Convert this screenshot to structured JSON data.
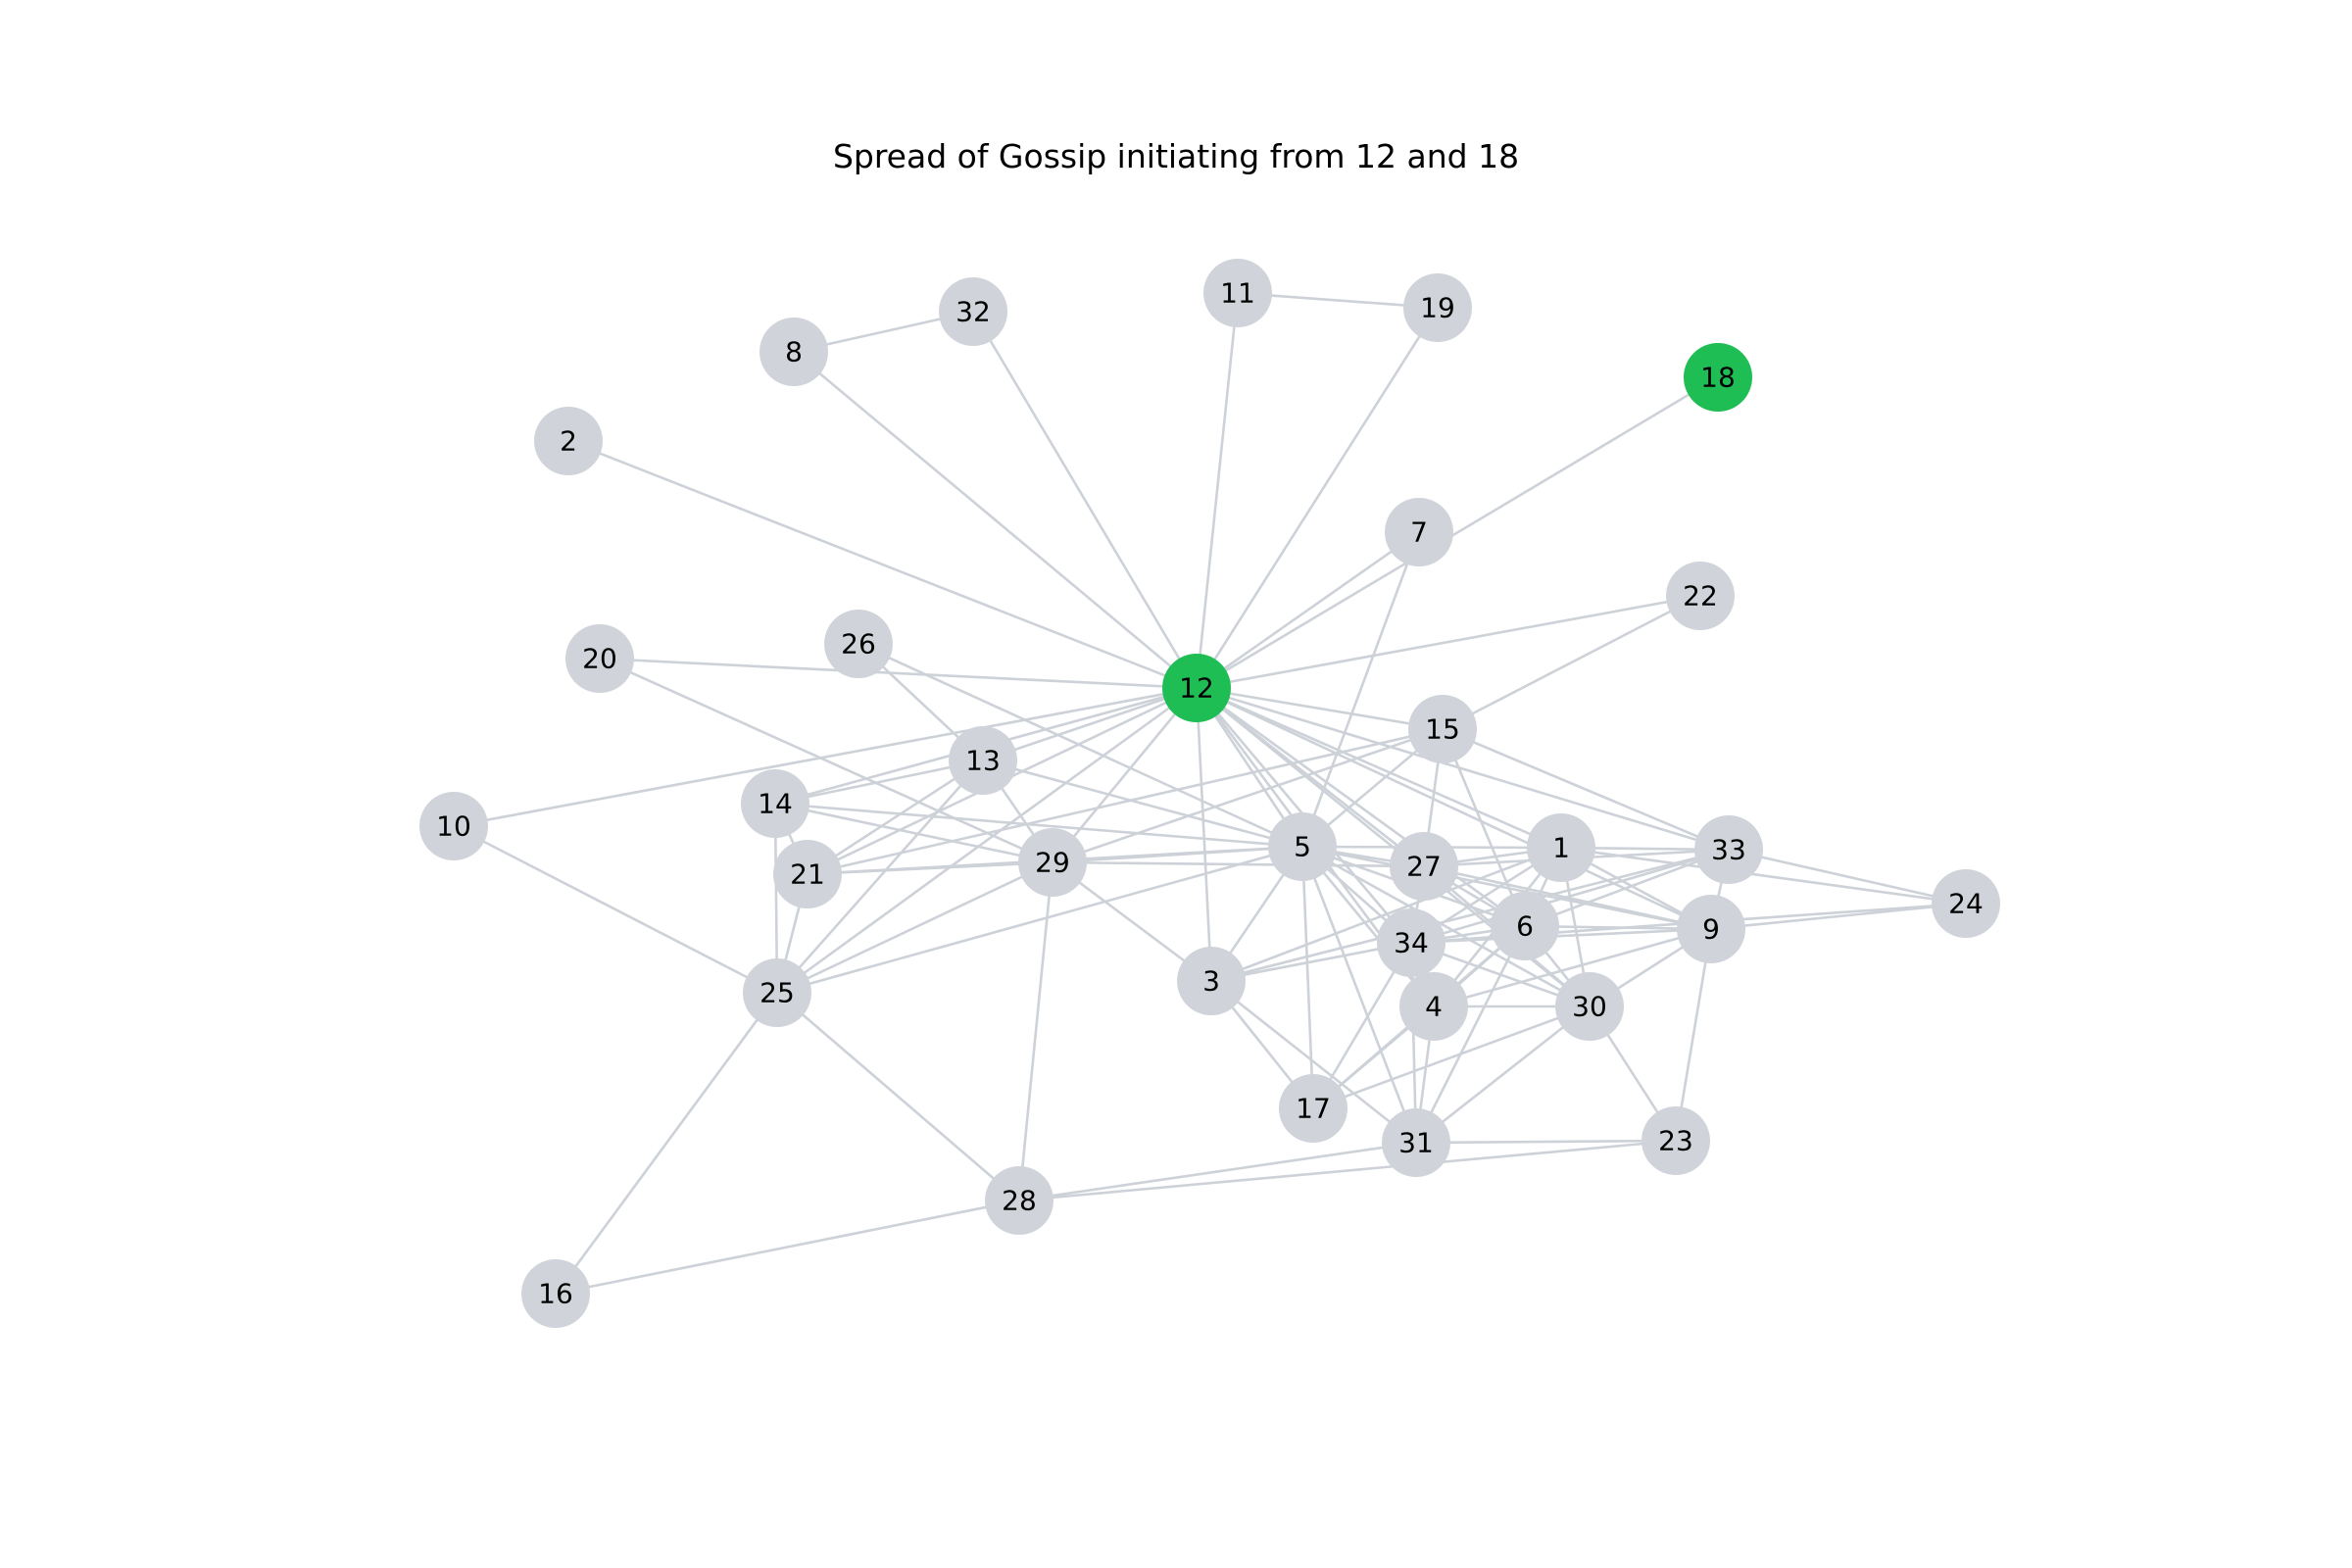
{
  "title": "Spread of Gossip initiating from 12 and 18",
  "colors": {
    "node_default": "#d0d4da",
    "node_informed": "#1fbe55",
    "edge": "#cdd1d8",
    "text": "#000000"
  },
  "nodes": [
    {
      "id": "1",
      "state": "default"
    },
    {
      "id": "2",
      "state": "default"
    },
    {
      "id": "3",
      "state": "default"
    },
    {
      "id": "4",
      "state": "default"
    },
    {
      "id": "5",
      "state": "default"
    },
    {
      "id": "6",
      "state": "default"
    },
    {
      "id": "7",
      "state": "default"
    },
    {
      "id": "8",
      "state": "default"
    },
    {
      "id": "9",
      "state": "default"
    },
    {
      "id": "10",
      "state": "default"
    },
    {
      "id": "11",
      "state": "default"
    },
    {
      "id": "12",
      "state": "informed"
    },
    {
      "id": "13",
      "state": "default"
    },
    {
      "id": "14",
      "state": "default"
    },
    {
      "id": "15",
      "state": "default"
    },
    {
      "id": "16",
      "state": "default"
    },
    {
      "id": "17",
      "state": "default"
    },
    {
      "id": "18",
      "state": "informed"
    },
    {
      "id": "19",
      "state": "default"
    },
    {
      "id": "20",
      "state": "default"
    },
    {
      "id": "21",
      "state": "default"
    },
    {
      "id": "22",
      "state": "default"
    },
    {
      "id": "23",
      "state": "default"
    },
    {
      "id": "24",
      "state": "default"
    },
    {
      "id": "25",
      "state": "default"
    },
    {
      "id": "26",
      "state": "default"
    },
    {
      "id": "27",
      "state": "default"
    },
    {
      "id": "28",
      "state": "default"
    },
    {
      "id": "29",
      "state": "default"
    },
    {
      "id": "30",
      "state": "default"
    },
    {
      "id": "31",
      "state": "default"
    },
    {
      "id": "32",
      "state": "default"
    },
    {
      "id": "33",
      "state": "default"
    },
    {
      "id": "34",
      "state": "default"
    }
  ],
  "edges": [
    [
      "12",
      "2"
    ],
    [
      "12",
      "8"
    ],
    [
      "12",
      "32"
    ],
    [
      "12",
      "11"
    ],
    [
      "12",
      "19"
    ],
    [
      "12",
      "7"
    ],
    [
      "12",
      "18"
    ],
    [
      "12",
      "22"
    ],
    [
      "12",
      "20"
    ],
    [
      "12",
      "10"
    ],
    [
      "12",
      "13"
    ],
    [
      "12",
      "14"
    ],
    [
      "12",
      "21"
    ],
    [
      "12",
      "29"
    ],
    [
      "12",
      "25"
    ],
    [
      "12",
      "15"
    ],
    [
      "12",
      "5"
    ],
    [
      "12",
      "27"
    ],
    [
      "12",
      "1"
    ],
    [
      "12",
      "6"
    ],
    [
      "12",
      "34"
    ],
    [
      "12",
      "33"
    ],
    [
      "12",
      "9"
    ],
    [
      "12",
      "3"
    ],
    [
      "12",
      "4"
    ],
    [
      "12",
      "30"
    ],
    [
      "8",
      "32"
    ],
    [
      "11",
      "19"
    ],
    [
      "7",
      "5"
    ],
    [
      "22",
      "15"
    ],
    [
      "20",
      "29"
    ],
    [
      "26",
      "13"
    ],
    [
      "26",
      "5"
    ],
    [
      "10",
      "25"
    ],
    [
      "13",
      "14"
    ],
    [
      "13",
      "21"
    ],
    [
      "13",
      "29"
    ],
    [
      "13",
      "5"
    ],
    [
      "13",
      "25"
    ],
    [
      "14",
      "21"
    ],
    [
      "14",
      "25"
    ],
    [
      "14",
      "29"
    ],
    [
      "14",
      "5"
    ],
    [
      "21",
      "25"
    ],
    [
      "21",
      "29"
    ],
    [
      "21",
      "5"
    ],
    [
      "21",
      "15"
    ],
    [
      "29",
      "5"
    ],
    [
      "29",
      "25"
    ],
    [
      "29",
      "28"
    ],
    [
      "29",
      "3"
    ],
    [
      "29",
      "27"
    ],
    [
      "29",
      "15"
    ],
    [
      "25",
      "28"
    ],
    [
      "25",
      "16"
    ],
    [
      "25",
      "5"
    ],
    [
      "16",
      "28"
    ],
    [
      "28",
      "31"
    ],
    [
      "28",
      "23"
    ],
    [
      "5",
      "27"
    ],
    [
      "5",
      "1"
    ],
    [
      "5",
      "6"
    ],
    [
      "5",
      "34"
    ],
    [
      "5",
      "4"
    ],
    [
      "5",
      "30"
    ],
    [
      "5",
      "3"
    ],
    [
      "5",
      "17"
    ],
    [
      "5",
      "31"
    ],
    [
      "5",
      "9"
    ],
    [
      "5",
      "15"
    ],
    [
      "15",
      "27"
    ],
    [
      "15",
      "6"
    ],
    [
      "15",
      "33"
    ],
    [
      "27",
      "1"
    ],
    [
      "27",
      "6"
    ],
    [
      "27",
      "34"
    ],
    [
      "27",
      "9"
    ],
    [
      "27",
      "33"
    ],
    [
      "27",
      "30"
    ],
    [
      "1",
      "6"
    ],
    [
      "1",
      "34"
    ],
    [
      "1",
      "4"
    ],
    [
      "1",
      "9"
    ],
    [
      "1",
      "33"
    ],
    [
      "1",
      "30"
    ],
    [
      "1",
      "3"
    ],
    [
      "6",
      "34"
    ],
    [
      "6",
      "4"
    ],
    [
      "6",
      "9"
    ],
    [
      "6",
      "30"
    ],
    [
      "6",
      "31"
    ],
    [
      "6",
      "17"
    ],
    [
      "6",
      "33"
    ],
    [
      "34",
      "4"
    ],
    [
      "34",
      "30"
    ],
    [
      "34",
      "9"
    ],
    [
      "34",
      "33"
    ],
    [
      "34",
      "3"
    ],
    [
      "34",
      "17"
    ],
    [
      "34",
      "31"
    ],
    [
      "34",
      "24"
    ],
    [
      "4",
      "30"
    ],
    [
      "4",
      "31"
    ],
    [
      "4",
      "17"
    ],
    [
      "4",
      "9"
    ],
    [
      "30",
      "31"
    ],
    [
      "30",
      "23"
    ],
    [
      "30",
      "9"
    ],
    [
      "30",
      "17"
    ],
    [
      "9",
      "33"
    ],
    [
      "9",
      "24"
    ],
    [
      "9",
      "23"
    ],
    [
      "33",
      "24"
    ],
    [
      "33",
      "3"
    ],
    [
      "1",
      "24"
    ],
    [
      "3",
      "17"
    ],
    [
      "3",
      "31"
    ],
    [
      "31",
      "23"
    ]
  ]
}
